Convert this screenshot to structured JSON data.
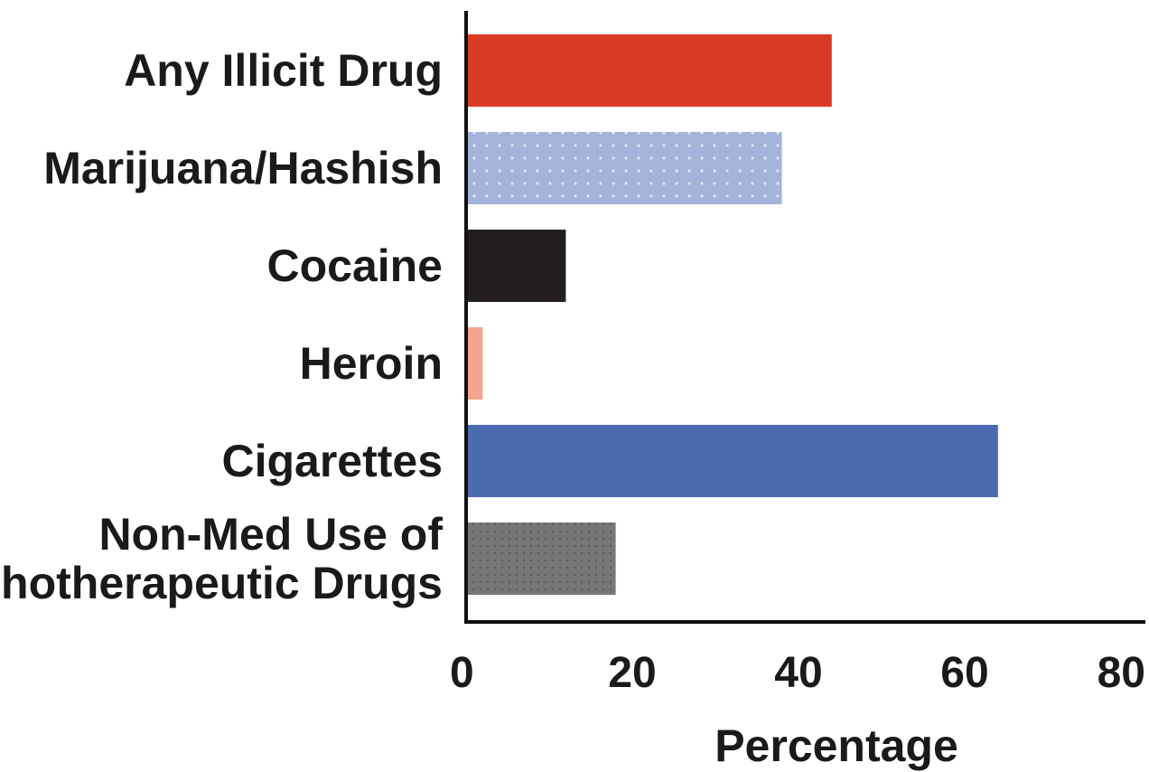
{
  "chart_data": {
    "type": "bar",
    "orientation": "horizontal",
    "title": "",
    "xlabel": "Percentage",
    "ylabel": "",
    "xlim": [
      0,
      80
    ],
    "xticks": [
      "0",
      "20",
      "40",
      "60",
      "80"
    ],
    "grid": false,
    "categories": [
      "Any Illicit Drug",
      "Marijuana/Hashish",
      "Cocaine",
      "Heroin",
      "Cigarettes",
      "Non-Med Use of Psychotherapeutic Drugs"
    ],
    "category_lines": [
      [
        "Any Illicit Drug"
      ],
      [
        "Marijuana/Hashish"
      ],
      [
        "Cocaine"
      ],
      [
        "Heroin"
      ],
      [
        "Cigarettes"
      ],
      [
        "Non-Med Use of",
        "Psychotherapeutic Drugs"
      ]
    ],
    "values": [
      44,
      38,
      12,
      2,
      64,
      18
    ],
    "colors": [
      "#d93a26",
      "#a3b3da",
      "#231f20",
      "#f4a58c",
      "#4a6bb0",
      "#777777"
    ]
  }
}
